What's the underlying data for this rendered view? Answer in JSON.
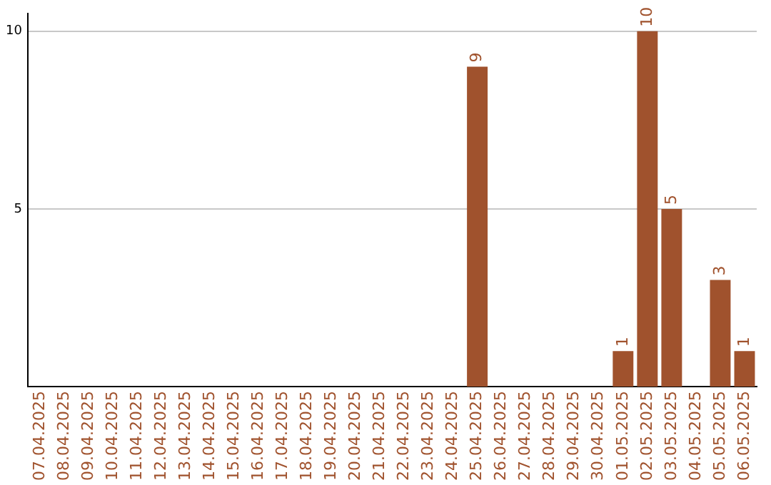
{
  "chart_data": {
    "type": "bar",
    "categories": [
      "07.04.2025",
      "08.04.2025",
      "09.04.2025",
      "10.04.2025",
      "11.04.2025",
      "12.04.2025",
      "13.04.2025",
      "14.04.2025",
      "15.04.2025",
      "16.04.2025",
      "17.04.2025",
      "18.04.2025",
      "19.04.2025",
      "20.04.2025",
      "21.04.2025",
      "22.04.2025",
      "23.04.2025",
      "24.04.2025",
      "25.04.2025",
      "26.04.2025",
      "27.04.2025",
      "28.04.2025",
      "29.04.2025",
      "30.04.2025",
      "01.05.2025",
      "02.05.2025",
      "03.05.2025",
      "04.05.2025",
      "05.05.2025",
      "06.05.2025"
    ],
    "values": [
      0,
      0,
      0,
      0,
      0,
      0,
      0,
      0,
      0,
      0,
      0,
      0,
      0,
      0,
      0,
      0,
      0,
      0,
      9,
      0,
      0,
      0,
      0,
      0,
      1,
      10,
      5,
      0,
      3,
      1
    ],
    "value_labels": [
      null,
      null,
      null,
      null,
      null,
      null,
      null,
      null,
      null,
      null,
      null,
      null,
      null,
      null,
      null,
      null,
      null,
      null,
      "9",
      null,
      null,
      null,
      null,
      null,
      "1",
      "10",
      "5",
      null,
      "3",
      "1"
    ],
    "color": "#a0522d",
    "ylim": [
      0,
      10.5
    ],
    "yticks": [
      5,
      10
    ],
    "grid": "y"
  }
}
